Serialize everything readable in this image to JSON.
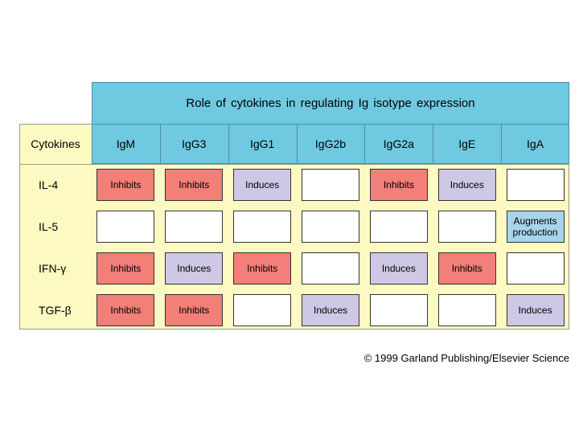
{
  "title": "Role of cytokines in regulating Ig isotype expression",
  "cytokines_header": "Cytokines",
  "isotypes": [
    "IgM",
    "IgG3",
    "IgG1",
    "IgG2b",
    "IgG2a",
    "IgE",
    "IgA"
  ],
  "rows": [
    {
      "cytokine": "IL-4",
      "cells": [
        "Inhibits",
        "Inhibits",
        "Induces",
        "",
        "Inhibits",
        "Induces",
        ""
      ]
    },
    {
      "cytokine": "IL-5",
      "cells": [
        "",
        "",
        "",
        "",
        "",
        "",
        "Augments production"
      ]
    },
    {
      "cytokine": "IFN-γ",
      "cells": [
        "Inhibits",
        "Induces",
        "Inhibits",
        "",
        "Induces",
        "Inhibits",
        ""
      ]
    },
    {
      "cytokine": "TGF-β",
      "cells": [
        "Inhibits",
        "Inhibits",
        "",
        "Induces",
        "",
        "",
        "Induces"
      ]
    }
  ],
  "colors": {
    "inhibits": "#f27f78",
    "induces": "#cec7e5",
    "augments": "#a7d3ec",
    "header": "#6fc9e0",
    "panel": "#fdf9c3"
  },
  "footer": "© 1999 Garland Publishing/Elsevier Science"
}
